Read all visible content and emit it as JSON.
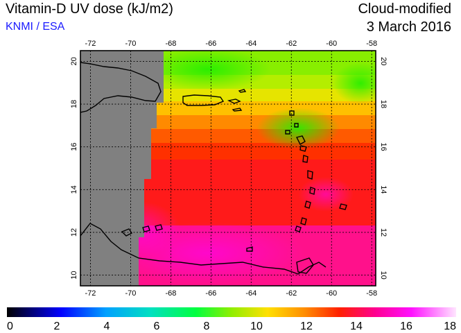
{
  "header": {
    "title": "Vitamin-D UV dose (kJ/m2)",
    "source": "KNMI / ESA",
    "product": "Cloud-modified",
    "date": "3 March 2016"
  },
  "map": {
    "lon_range": [
      -72.5,
      -57.8
    ],
    "lat_range": [
      9.5,
      20.5
    ],
    "lon_ticks": [
      "-72",
      "-70",
      "-68",
      "-66",
      "-64",
      "-62",
      "-60",
      "-58"
    ],
    "lat_ticks": [
      "10",
      "12",
      "14",
      "16",
      "18",
      "20"
    ],
    "no_data_color": "#808080"
  },
  "colorbar": {
    "ticks": [
      "0",
      "2",
      "4",
      "6",
      "8",
      "10",
      "12",
      "14",
      "16",
      "18"
    ],
    "range": [
      0,
      18
    ]
  }
}
